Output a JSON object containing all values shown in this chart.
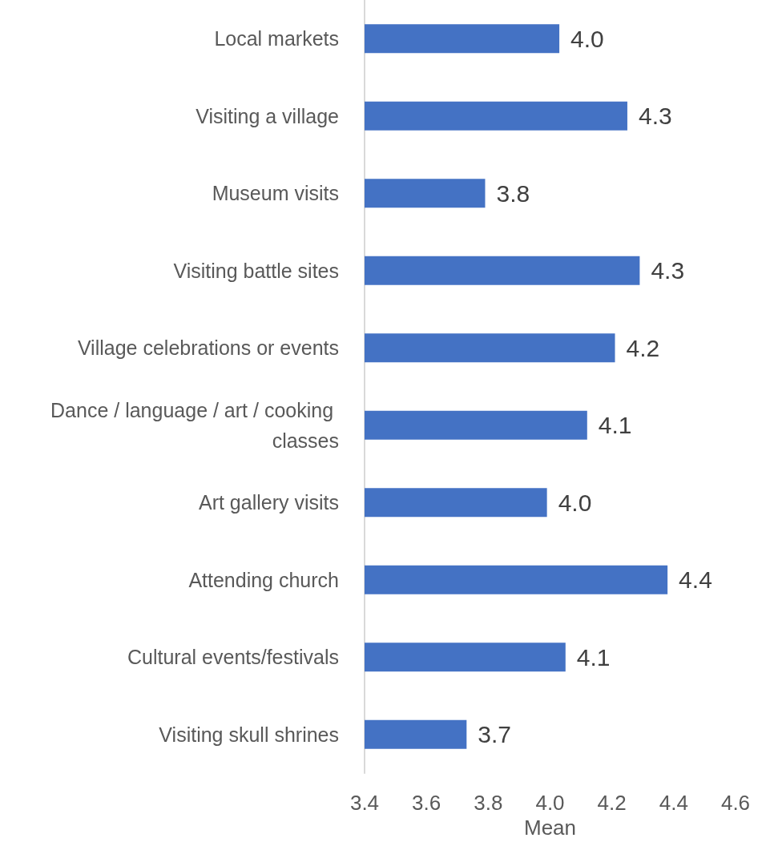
{
  "chart_data": {
    "type": "bar",
    "orientation": "horizontal",
    "xlabel": "Mean",
    "categories": [
      "Local markets",
      "Visiting a village",
      "Museum visits",
      "Visiting battle sites",
      "Village celebrations or events",
      "Dance / language / art / cooking classes",
      "Art gallery visits",
      "Attending church",
      "Cultural events/festivals",
      "Visiting skull shrines"
    ],
    "values": [
      4.03,
      4.25,
      3.79,
      4.29,
      4.21,
      4.12,
      3.99,
      4.38,
      4.05,
      3.73
    ],
    "value_labels": [
      "4.0",
      "4.3",
      "3.8",
      "4.3",
      "4.2",
      "4.1",
      "4.0",
      "4.4",
      "4.1",
      "3.7"
    ],
    "color": "#4472c4",
    "xlim": [
      3.4,
      4.6
    ],
    "xticks": [
      3.4,
      3.6,
      3.8,
      {
        "value": 4.0,
        "label": "4.0"
      },
      4.2,
      4.4,
      4.6
    ],
    "grid": false
  }
}
